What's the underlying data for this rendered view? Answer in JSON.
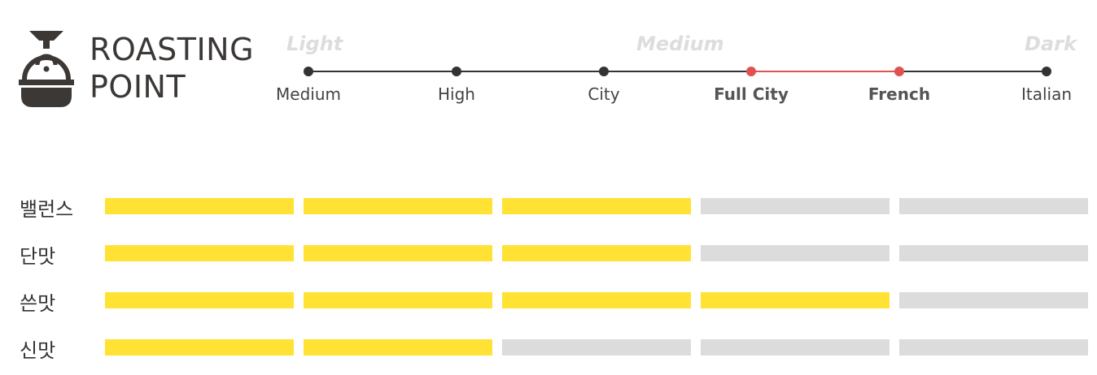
{
  "header": {
    "title_line1": "ROASTING",
    "title_line2": "POINT",
    "logo_icon": "coffee-roaster-icon"
  },
  "roast_scale": {
    "headings": [
      "Light",
      "Medium",
      "Dark"
    ],
    "levels": [
      "Medium",
      "High",
      "City",
      "Full City",
      "French",
      "Italian"
    ],
    "active_levels": [
      "Full City",
      "French"
    ],
    "line_color": "#333333",
    "active_color": "#e05252"
  },
  "taste_profile": {
    "max_level": 5,
    "rows": [
      {
        "label": "밸런스",
        "level": 3
      },
      {
        "label": "단맛",
        "level": 3
      },
      {
        "label": "쓴맛",
        "level": 4
      },
      {
        "label": "신맛",
        "level": 2
      }
    ],
    "filled_color": "#ffe233",
    "empty_color": "#dcdcdc"
  }
}
